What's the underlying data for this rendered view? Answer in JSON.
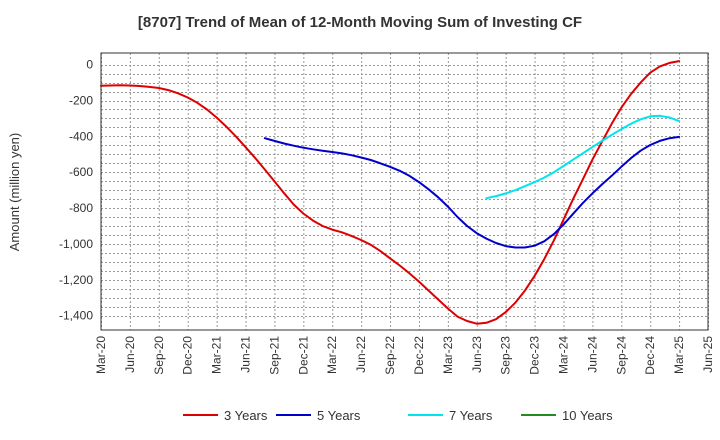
{
  "chart_data": {
    "type": "line",
    "title": "[8707]  Trend of Mean of 12-Month Moving Sum of Investing CF",
    "xlabel": "",
    "ylabel": "Amount (million yen)",
    "categories": [
      "Mar-20",
      "Jun-20",
      "Sep-20",
      "Dec-20",
      "Mar-21",
      "Jun-21",
      "Sep-21",
      "Dec-21",
      "Mar-22",
      "Jun-22",
      "Sep-22",
      "Dec-22",
      "Mar-23",
      "Jun-23",
      "Sep-23",
      "Dec-23",
      "Mar-24",
      "Jun-24",
      "Sep-24",
      "Dec-24",
      "Mar-25",
      "Jun-25"
    ],
    "yticks": [
      0,
      -200,
      -400,
      -600,
      -800,
      -1000,
      -1200,
      -1400
    ],
    "ytick_labels": [
      "0",
      "-200",
      "-400",
      "-600",
      "-800",
      "-1,000",
      "-1,200",
      "-1,400"
    ],
    "ylim": [
      -1480,
      65
    ],
    "grid": true,
    "legend_position": "bottom",
    "series": [
      {
        "name": "3 Years",
        "color": "#dd0000",
        "x": [
          0,
          0.333,
          0.667,
          1,
          1.333,
          1.667,
          2,
          2.333,
          2.667,
          3,
          3.333,
          3.667,
          4,
          4.333,
          4.667,
          5,
          5.333,
          5.667,
          6,
          6.333,
          6.667,
          7,
          7.333,
          7.667,
          8,
          8.333,
          8.667,
          9,
          9.333,
          9.667,
          10,
          10.333,
          10.667,
          11,
          11.333,
          11.667,
          12,
          12.333,
          12.667,
          13,
          13.333,
          13.667,
          14,
          14.333,
          14.667,
          15,
          15.333,
          15.667,
          16,
          16.333,
          16.667,
          17,
          17.333,
          17.667,
          18,
          18.333,
          18.667,
          19,
          19.333,
          19.667,
          20
        ],
        "y": [
          -118,
          -116,
          -115,
          -116,
          -119,
          -124,
          -130,
          -142,
          -160,
          -183,
          -213,
          -250,
          -295,
          -345,
          -400,
          -460,
          -520,
          -585,
          -650,
          -717,
          -780,
          -830,
          -870,
          -900,
          -920,
          -935,
          -955,
          -978,
          -1005,
          -1040,
          -1080,
          -1120,
          -1163,
          -1210,
          -1260,
          -1310,
          -1360,
          -1405,
          -1430,
          -1445,
          -1440,
          -1420,
          -1380,
          -1328,
          -1260,
          -1178,
          -1085,
          -980,
          -865,
          -750,
          -640,
          -530,
          -430,
          -330,
          -240,
          -165,
          -100,
          -45,
          -10,
          10,
          20
        ]
      },
      {
        "name": "5 Years",
        "color": "#0000cc",
        "x": [
          5.667,
          6,
          6.333,
          6.667,
          7,
          7.333,
          7.667,
          8,
          8.333,
          8.667,
          9,
          9.333,
          9.667,
          10,
          10.333,
          10.667,
          11,
          11.333,
          11.667,
          12,
          12.333,
          12.667,
          13,
          13.333,
          13.667,
          14,
          14.333,
          14.667,
          15,
          15.333,
          15.667,
          16,
          16.333,
          16.667,
          17,
          17.333,
          17.667,
          18,
          18.333,
          18.667,
          19,
          19.333,
          19.667,
          20
        ],
        "y": [
          -410,
          -425,
          -440,
          -452,
          -463,
          -472,
          -480,
          -487,
          -495,
          -505,
          -518,
          -532,
          -550,
          -570,
          -592,
          -620,
          -655,
          -695,
          -740,
          -792,
          -850,
          -900,
          -940,
          -970,
          -995,
          -1012,
          -1020,
          -1020,
          -1010,
          -985,
          -945,
          -892,
          -832,
          -772,
          -718,
          -668,
          -620,
          -570,
          -522,
          -480,
          -448,
          -425,
          -410,
          -403
        ]
      },
      {
        "name": "7 Years",
        "color": "#00e5ee",
        "x": [
          13.333,
          13.667,
          14,
          14.333,
          14.667,
          15,
          15.333,
          15.667,
          16,
          16.333,
          16.667,
          17,
          17.333,
          17.667,
          18,
          18.333,
          18.667,
          19,
          19.333,
          19.667,
          20
        ],
        "y": [
          -745,
          -733,
          -718,
          -700,
          -678,
          -655,
          -630,
          -600,
          -565,
          -530,
          -495,
          -460,
          -425,
          -392,
          -360,
          -330,
          -305,
          -288,
          -285,
          -295,
          -315
        ]
      },
      {
        "name": "10 Years",
        "color": "#228b22",
        "x": [],
        "y": []
      }
    ]
  }
}
